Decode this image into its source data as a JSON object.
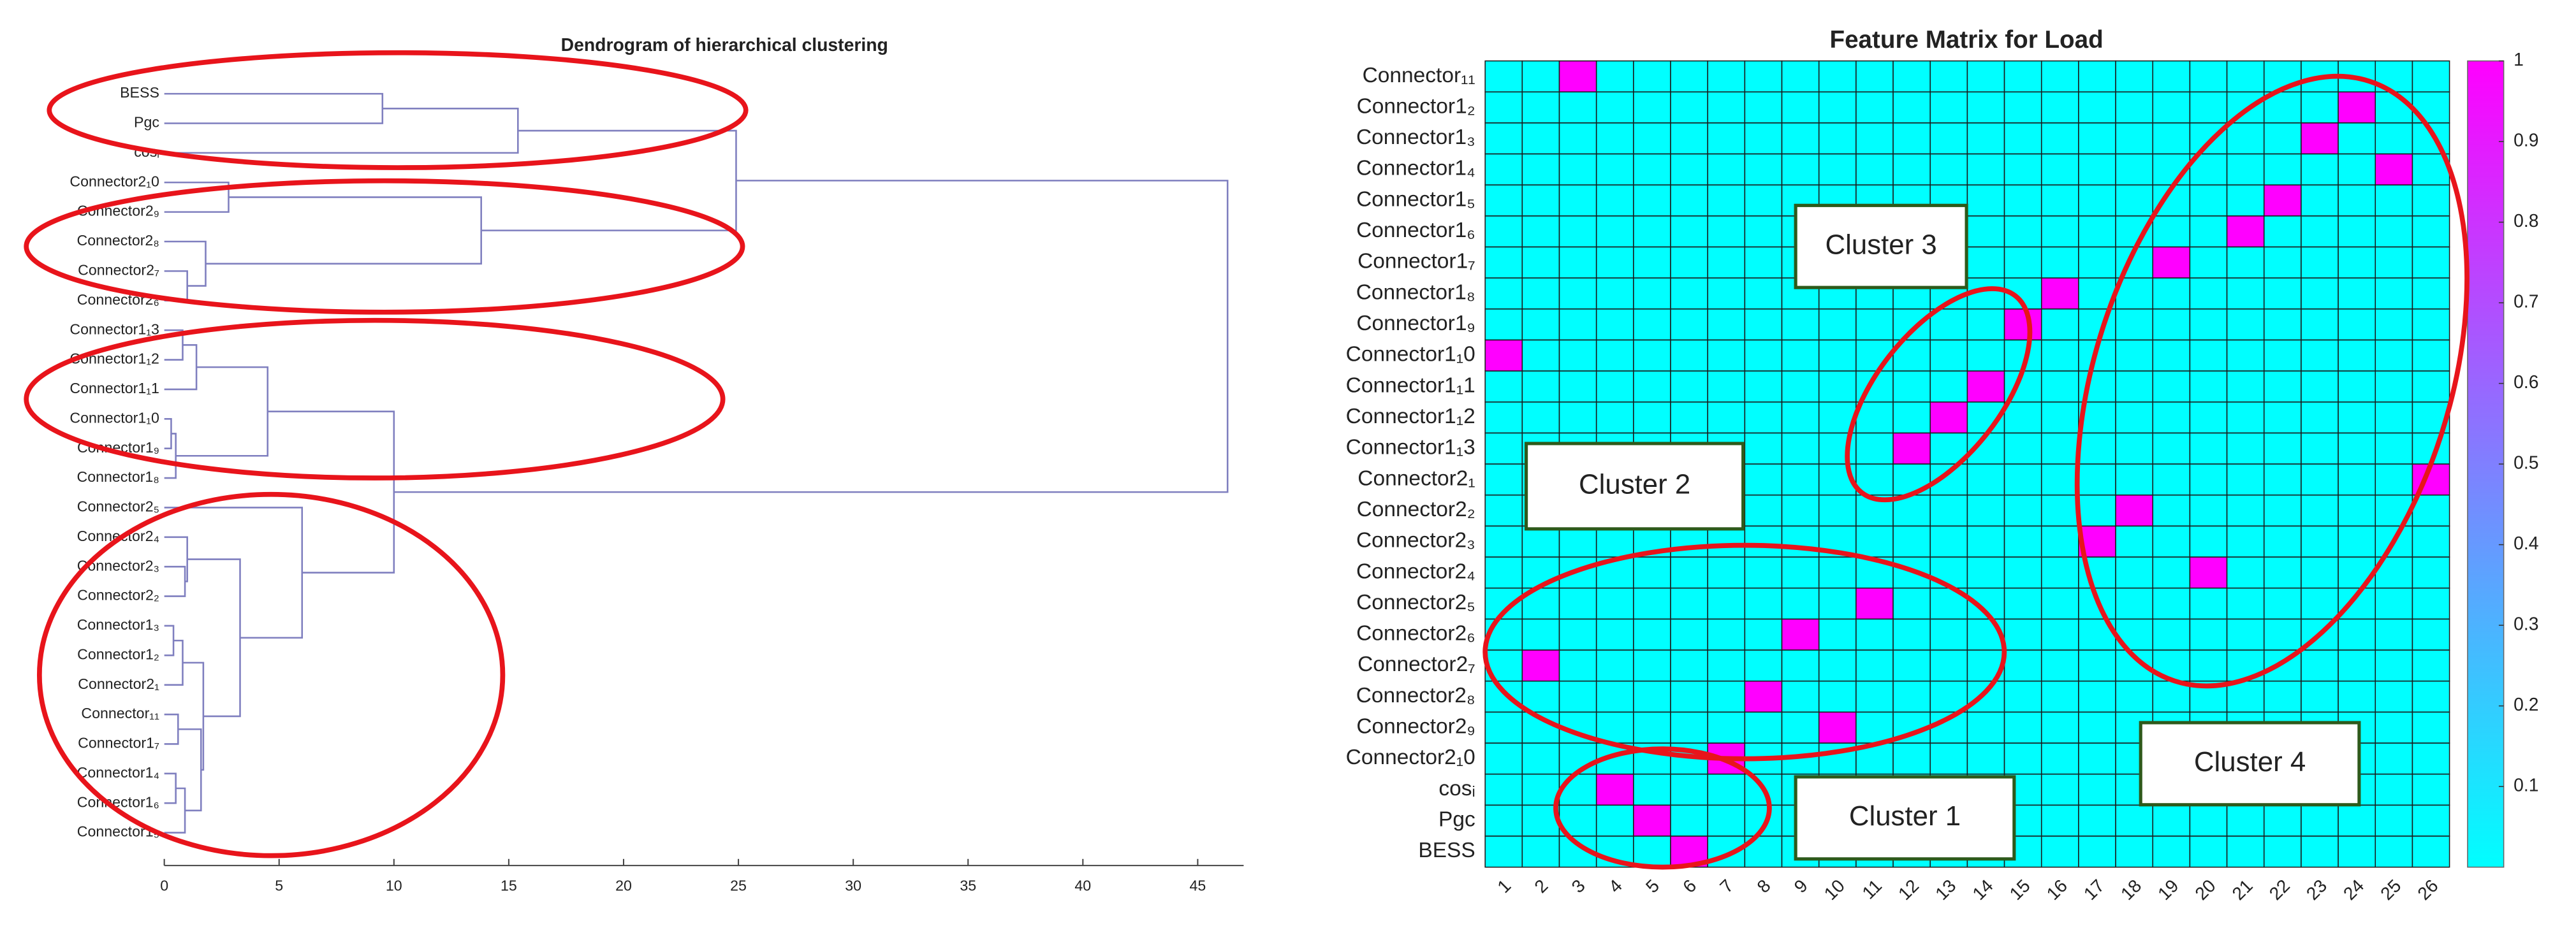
{
  "chart_data": [
    {
      "type": "dendrogram",
      "title": "Dendrogram of hierarchical clustering",
      "leaves": [
        "BESS",
        "Pgc",
        "cosᵢ",
        "Connector2₁0",
        "Connector2₉",
        "Connector2₈",
        "Connector2₇",
        "Connector2₆",
        "Connector1₁3",
        "Connector1₁2",
        "Connector1₁1",
        "Connector1₁0",
        "Connector1₉",
        "Connector1₈",
        "Connector2₅",
        "Connector2₄",
        "Connector2₃",
        "Connector2₂",
        "Connector1₃",
        "Connector1₂",
        "Connector2₁",
        "Connector₁₁",
        "Connector1₇",
        "Connector1₄",
        "Connector1₆",
        "Connector1₅"
      ],
      "merges": [
        [
          0,
          1,
          9.5
        ],
        [
          26,
          2,
          15.4
        ],
        [
          6,
          7,
          1.0
        ],
        [
          5,
          28,
          1.8
        ],
        [
          3,
          4,
          2.8
        ],
        [
          30,
          29,
          13.8
        ],
        [
          27,
          31,
          24.9
        ],
        [
          8,
          9,
          0.8
        ],
        [
          33,
          10,
          1.4
        ],
        [
          11,
          12,
          0.3
        ],
        [
          35,
          13,
          0.5
        ],
        [
          34,
          36,
          4.5
        ],
        [
          18,
          19,
          0.4
        ],
        [
          38,
          20,
          0.8
        ],
        [
          21,
          22,
          0.6
        ],
        [
          23,
          24,
          0.5
        ],
        [
          41,
          25,
          0.9
        ],
        [
          40,
          42,
          1.6
        ],
        [
          39,
          43,
          1.7
        ],
        [
          16,
          17,
          0.9
        ],
        [
          15,
          45,
          1.0
        ],
        [
          46,
          44,
          3.3
        ],
        [
          14,
          47,
          6.0
        ],
        [
          37,
          48,
          10.0
        ],
        [
          32,
          49,
          46.3
        ]
      ],
      "color": "#7f7fbf",
      "xlim": [
        0,
        47
      ],
      "xticks": [
        0,
        5,
        10,
        15,
        20,
        25,
        30,
        35,
        40,
        45
      ]
    },
    {
      "type": "heatmap",
      "title": "Feature Matrix for Load",
      "rows": [
        "Connector₁₁",
        "Connector1₂",
        "Connector1₃",
        "Connector1₄",
        "Connector1₅",
        "Connector1₆",
        "Connector1₇",
        "Connector1₈",
        "Connector1₉",
        "Connector1₁0",
        "Connector1₁1",
        "Connector1₁2",
        "Connector1₁3",
        "Connector2₁",
        "Connector2₂",
        "Connector2₃",
        "Connector2₄",
        "Connector2₅",
        "Connector2₆",
        "Connector2₇",
        "Connector2₈",
        "Connector2₉",
        "Connector2₁0",
        "cosᵢ",
        "Pgc",
        "BESS"
      ],
      "columns": [
        1,
        2,
        3,
        4,
        5,
        6,
        7,
        8,
        9,
        10,
        11,
        12,
        13,
        14,
        15,
        16,
        17,
        18,
        19,
        20,
        21,
        22,
        23,
        24,
        25,
        26
      ],
      "values": [
        [
          0,
          0,
          1,
          0,
          0,
          0,
          0,
          0,
          0,
          0,
          0,
          0,
          0,
          0,
          0,
          0,
          0,
          0,
          0,
          0,
          0,
          0,
          0,
          0,
          0,
          0
        ],
        [
          0,
          0,
          0,
          0,
          0,
          0,
          0,
          0,
          0,
          0,
          0,
          0,
          0,
          0,
          0,
          0,
          0,
          0,
          0,
          0,
          0,
          0,
          0,
          1,
          0,
          0
        ],
        [
          0,
          0,
          0,
          0,
          0,
          0,
          0,
          0,
          0,
          0,
          0,
          0,
          0,
          0,
          0,
          0,
          0,
          0,
          0,
          0,
          0,
          0,
          1,
          0,
          0,
          0
        ],
        [
          0,
          0,
          0,
          0,
          0,
          0,
          0,
          0,
          0,
          0,
          0,
          0,
          0,
          0,
          0,
          0,
          0,
          0,
          0,
          0,
          0,
          0,
          0,
          0,
          1,
          0
        ],
        [
          0,
          0,
          0,
          0,
          0,
          0,
          0,
          0,
          0,
          0,
          0,
          0,
          0,
          0,
          0,
          0,
          0,
          0,
          0,
          0,
          0,
          1,
          0,
          0,
          0,
          0
        ],
        [
          0,
          0,
          0,
          0,
          0,
          0,
          0,
          0,
          0,
          0,
          0,
          0,
          0,
          0,
          0,
          0,
          0,
          0,
          0,
          0,
          1,
          0,
          0,
          0,
          0,
          0
        ],
        [
          0,
          0,
          0,
          0,
          0,
          0,
          0,
          0,
          0,
          0,
          0,
          0,
          0,
          0,
          0,
          0,
          0,
          0,
          1,
          0,
          0,
          0,
          0,
          0,
          0,
          0
        ],
        [
          0,
          0,
          0,
          0,
          0,
          0,
          0,
          0,
          0,
          0,
          0,
          0,
          0,
          0,
          0,
          1,
          0,
          0,
          0,
          0,
          0,
          0,
          0,
          0,
          0,
          0
        ],
        [
          0,
          0,
          0,
          0,
          0,
          0,
          0,
          0,
          0,
          0,
          0,
          0,
          0,
          0,
          1,
          0,
          0,
          0,
          0,
          0,
          0,
          0,
          0,
          0,
          0,
          0
        ],
        [
          1,
          0,
          0,
          0,
          0,
          0,
          0,
          0,
          0,
          0,
          0,
          0,
          0,
          0,
          0,
          0,
          0,
          0,
          0,
          0,
          0,
          0,
          0,
          0,
          0,
          0
        ],
        [
          0,
          0,
          0,
          0,
          0,
          0,
          0,
          0,
          0,
          0,
          0,
          0,
          0,
          1,
          0,
          0,
          0,
          0,
          0,
          0,
          0,
          0,
          0,
          0,
          0,
          0
        ],
        [
          0,
          0,
          0,
          0,
          0,
          0,
          0,
          0,
          0,
          0,
          0,
          0,
          1,
          0,
          0,
          0,
          0,
          0,
          0,
          0,
          0,
          0,
          0,
          0,
          0,
          0
        ],
        [
          0,
          0,
          0,
          0,
          0,
          0,
          0,
          0,
          0,
          0,
          0,
          1,
          0,
          0,
          0,
          0,
          0,
          0,
          0,
          0,
          0,
          0,
          0,
          0,
          0,
          0
        ],
        [
          0,
          0,
          0,
          0,
          0,
          0,
          0,
          0,
          0,
          0,
          0,
          0,
          0,
          0,
          0,
          0,
          0,
          0,
          0,
          0,
          0,
          0,
          0,
          0,
          0,
          1
        ],
        [
          0,
          0,
          0,
          0,
          0,
          0,
          0,
          0,
          0,
          0,
          0,
          0,
          0,
          0,
          0,
          0,
          0,
          1,
          0,
          0,
          0,
          0,
          0,
          0,
          0,
          0
        ],
        [
          0,
          0,
          0,
          0,
          0,
          0,
          0,
          0,
          0,
          0,
          0,
          0,
          0,
          0,
          0,
          0,
          1,
          0,
          0,
          0,
          0,
          0,
          0,
          0,
          0,
          0
        ],
        [
          0,
          0,
          0,
          0,
          0,
          0,
          0,
          0,
          0,
          0,
          0,
          0,
          0,
          0,
          0,
          0,
          0,
          0,
          0,
          1,
          0,
          0,
          0,
          0,
          0,
          0
        ],
        [
          0,
          0,
          0,
          0,
          0,
          0,
          0,
          0,
          0,
          0,
          1,
          0,
          0,
          0,
          0,
          0,
          0,
          0,
          0,
          0,
          0,
          0,
          0,
          0,
          0,
          0
        ],
        [
          0,
          0,
          0,
          0,
          0,
          0,
          0,
          0,
          1,
          0,
          0,
          0,
          0,
          0,
          0,
          0,
          0,
          0,
          0,
          0,
          0,
          0,
          0,
          0,
          0,
          0
        ],
        [
          0,
          1,
          0,
          0,
          0,
          0,
          0,
          0,
          0,
          0,
          0,
          0,
          0,
          0,
          0,
          0,
          0,
          0,
          0,
          0,
          0,
          0,
          0,
          0,
          0,
          0
        ],
        [
          0,
          0,
          0,
          0,
          0,
          0,
          0,
          1,
          0,
          0,
          0,
          0,
          0,
          0,
          0,
          0,
          0,
          0,
          0,
          0,
          0,
          0,
          0,
          0,
          0,
          0
        ],
        [
          0,
          0,
          0,
          0,
          0,
          0,
          0,
          0,
          0,
          1,
          0,
          0,
          0,
          0,
          0,
          0,
          0,
          0,
          0,
          0,
          0,
          0,
          0,
          0,
          0,
          0
        ],
        [
          0,
          0,
          0,
          0,
          0,
          0,
          1,
          0,
          0,
          0,
          0,
          0,
          0,
          0,
          0,
          0,
          0,
          0,
          0,
          0,
          0,
          0,
          0,
          0,
          0,
          0
        ],
        [
          0,
          0,
          0,
          1,
          0,
          0,
          0,
          0,
          0,
          0,
          0,
          0,
          0,
          0,
          0,
          0,
          0,
          0,
          0,
          0,
          0,
          0,
          0,
          0,
          0,
          0
        ],
        [
          0,
          0,
          0,
          0,
          1,
          0,
          0,
          0,
          0,
          0,
          0,
          0,
          0,
          0,
          0,
          0,
          0,
          0,
          0,
          0,
          0,
          0,
          0,
          0,
          0,
          0
        ],
        [
          0,
          0,
          0,
          0,
          0,
          1,
          0,
          0,
          0,
          0,
          0,
          0,
          0,
          0,
          0,
          0,
          0,
          0,
          0,
          0,
          0,
          0,
          0,
          0,
          0,
          0
        ]
      ],
      "colormap": [
        "#00ffff",
        "#ff00ff"
      ],
      "clim": [
        0,
        1
      ],
      "cticks": [
        0.1,
        0.2,
        0.3,
        0.4,
        0.5,
        0.6,
        0.7,
        0.8,
        0.9,
        1
      ],
      "annotations": [
        "Cluster 3",
        "Cluster 2",
        "Cluster 1",
        "Cluster 4"
      ]
    }
  ]
}
